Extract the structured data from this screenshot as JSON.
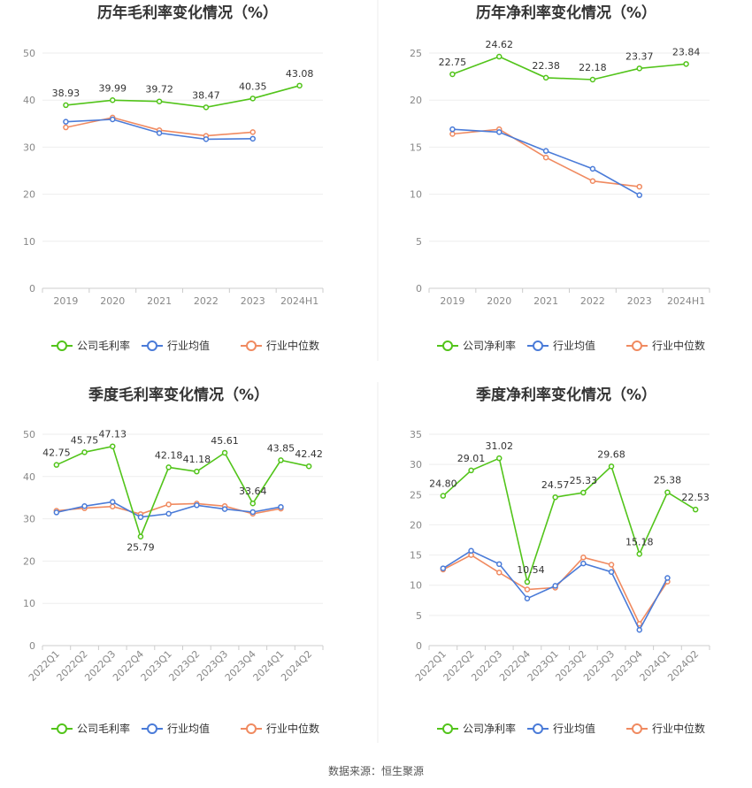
{
  "source_text": "数据来源：恒生聚源",
  "colors": {
    "company": "#52c41a",
    "industry_avg": "#4a7bd8",
    "industry_median": "#f08a60"
  },
  "chart_data": [
    {
      "type": "line",
      "title": "历年毛利率变化情况（%）",
      "categories": [
        "2019",
        "2020",
        "2021",
        "2022",
        "2023",
        "2024H1"
      ],
      "ylim": [
        0,
        50
      ],
      "yticks": [
        0,
        10,
        20,
        30,
        40,
        50
      ],
      "grid": true,
      "legend_position": "bottom",
      "series": [
        {
          "name": "公司毛利率",
          "values": [
            38.93,
            39.99,
            39.72,
            38.47,
            40.35,
            43.08
          ],
          "labels": [
            "38.93",
            "39.99",
            "39.72",
            "38.47",
            "40.35",
            "43.08"
          ]
        },
        {
          "name": "行业均值",
          "values": [
            35.4,
            35.9,
            33.0,
            31.7,
            31.8,
            null
          ]
        },
        {
          "name": "行业中位数",
          "values": [
            34.2,
            36.3,
            33.6,
            32.4,
            33.2,
            null
          ]
        }
      ]
    },
    {
      "type": "line",
      "title": "历年净利率变化情况（%）",
      "categories": [
        "2019",
        "2020",
        "2021",
        "2022",
        "2023",
        "2024H1"
      ],
      "ylim": [
        0,
        25
      ],
      "yticks": [
        0,
        5,
        10,
        15,
        20,
        25
      ],
      "grid": true,
      "legend_position": "bottom",
      "series": [
        {
          "name": "公司净利率",
          "values": [
            22.75,
            24.62,
            22.38,
            22.18,
            23.37,
            23.84
          ],
          "labels": [
            "22.75",
            "24.62",
            "22.38",
            "22.18",
            "23.37",
            "23.84"
          ]
        },
        {
          "name": "行业均值",
          "values": [
            16.9,
            16.6,
            14.6,
            12.7,
            9.9,
            null
          ]
        },
        {
          "name": "行业中位数",
          "values": [
            16.4,
            16.9,
            13.9,
            11.4,
            10.8,
            null
          ]
        }
      ]
    },
    {
      "type": "line",
      "title": "季度毛利率变化情况（%）",
      "categories": [
        "2022Q1",
        "2022Q2",
        "2022Q3",
        "2022Q4",
        "2023Q1",
        "2023Q2",
        "2023Q3",
        "2023Q4",
        "2024Q1",
        "2024Q2"
      ],
      "ylim": [
        0,
        50
      ],
      "yticks": [
        0,
        10,
        20,
        30,
        40,
        50
      ],
      "grid": true,
      "legend_position": "bottom",
      "series": [
        {
          "name": "公司毛利率",
          "values": [
            42.75,
            45.75,
            47.13,
            25.79,
            42.18,
            41.18,
            45.61,
            33.64,
            43.85,
            42.42
          ],
          "labels": [
            "42.75",
            "45.75",
            "47.13",
            "25.79",
            "42.18",
            "41.18",
            "45.61",
            "33.64",
            "43.85",
            "42.42"
          ]
        },
        {
          "name": "行业均值",
          "values": [
            31.5,
            33.0,
            34.0,
            30.4,
            31.2,
            33.2,
            32.3,
            31.6,
            32.8,
            null
          ]
        },
        {
          "name": "行业中位数",
          "values": [
            31.9,
            32.5,
            32.9,
            31.1,
            33.4,
            33.6,
            33.0,
            31.2,
            32.4,
            null
          ]
        }
      ]
    },
    {
      "type": "line",
      "title": "季度净利率变化情况（%）",
      "categories": [
        "2022Q1",
        "2022Q2",
        "2022Q3",
        "2022Q4",
        "2023Q1",
        "2023Q2",
        "2023Q3",
        "2023Q4",
        "2024Q1",
        "2024Q2"
      ],
      "ylim": [
        0,
        35
      ],
      "yticks": [
        0,
        5,
        10,
        15,
        20,
        25,
        30,
        35
      ],
      "grid": true,
      "legend_position": "bottom",
      "series": [
        {
          "name": "公司净利率",
          "values": [
            24.8,
            29.01,
            31.02,
            10.54,
            24.57,
            25.33,
            29.68,
            15.18,
            25.38,
            22.53
          ],
          "labels": [
            "24.80",
            "29.01",
            "31.02",
            "10.54",
            "24.57",
            "25.33",
            "29.68",
            "15.18",
            "25.38",
            "22.53"
          ]
        },
        {
          "name": "行业均值",
          "values": [
            12.8,
            15.7,
            13.5,
            7.8,
            9.9,
            13.6,
            12.2,
            2.6,
            11.2,
            null
          ]
        },
        {
          "name": "行业中位数",
          "values": [
            12.6,
            15.0,
            12.1,
            9.3,
            9.6,
            14.6,
            13.4,
            3.6,
            10.6,
            null
          ]
        }
      ]
    }
  ]
}
